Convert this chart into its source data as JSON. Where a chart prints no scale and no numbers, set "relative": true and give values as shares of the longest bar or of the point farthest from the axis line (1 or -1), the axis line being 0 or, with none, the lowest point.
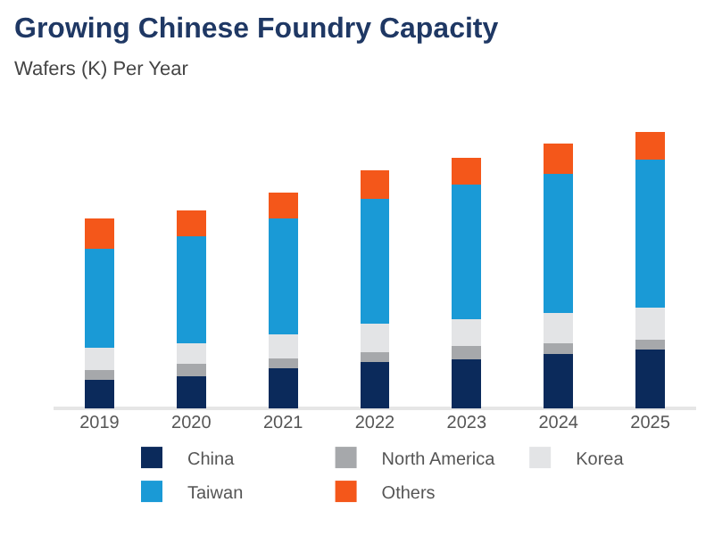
{
  "chart_data": {
    "type": "bar",
    "title": "Growing Chinese Foundry Capacity",
    "subtitle": "Wafers (K) Per Year",
    "categories": [
      "2019",
      "2020",
      "2021",
      "2022",
      "2023",
      "2024",
      "2025"
    ],
    "stacked": true,
    "relative": true,
    "legend": "bottom",
    "series": [
      {
        "name": "China",
        "color": "#0b2a5b",
        "values": [
          0.104,
          0.116,
          0.145,
          0.168,
          0.179,
          0.197,
          0.214
        ]
      },
      {
        "name": "North America",
        "color": "#a6a8ab",
        "values": [
          0.035,
          0.046,
          0.035,
          0.035,
          0.046,
          0.04,
          0.035
        ]
      },
      {
        "name": "Korea",
        "color": "#e3e4e6",
        "values": [
          0.081,
          0.075,
          0.087,
          0.104,
          0.098,
          0.11,
          0.116
        ]
      },
      {
        "name": "Taiwan",
        "color": "#1a9ad6",
        "values": [
          0.358,
          0.387,
          0.422,
          0.451,
          0.486,
          0.503,
          0.537
        ]
      },
      {
        "name": "Others",
        "color": "#f4571a",
        "values": [
          0.11,
          0.092,
          0.092,
          0.104,
          0.098,
          0.11,
          0.098
        ]
      }
    ]
  }
}
